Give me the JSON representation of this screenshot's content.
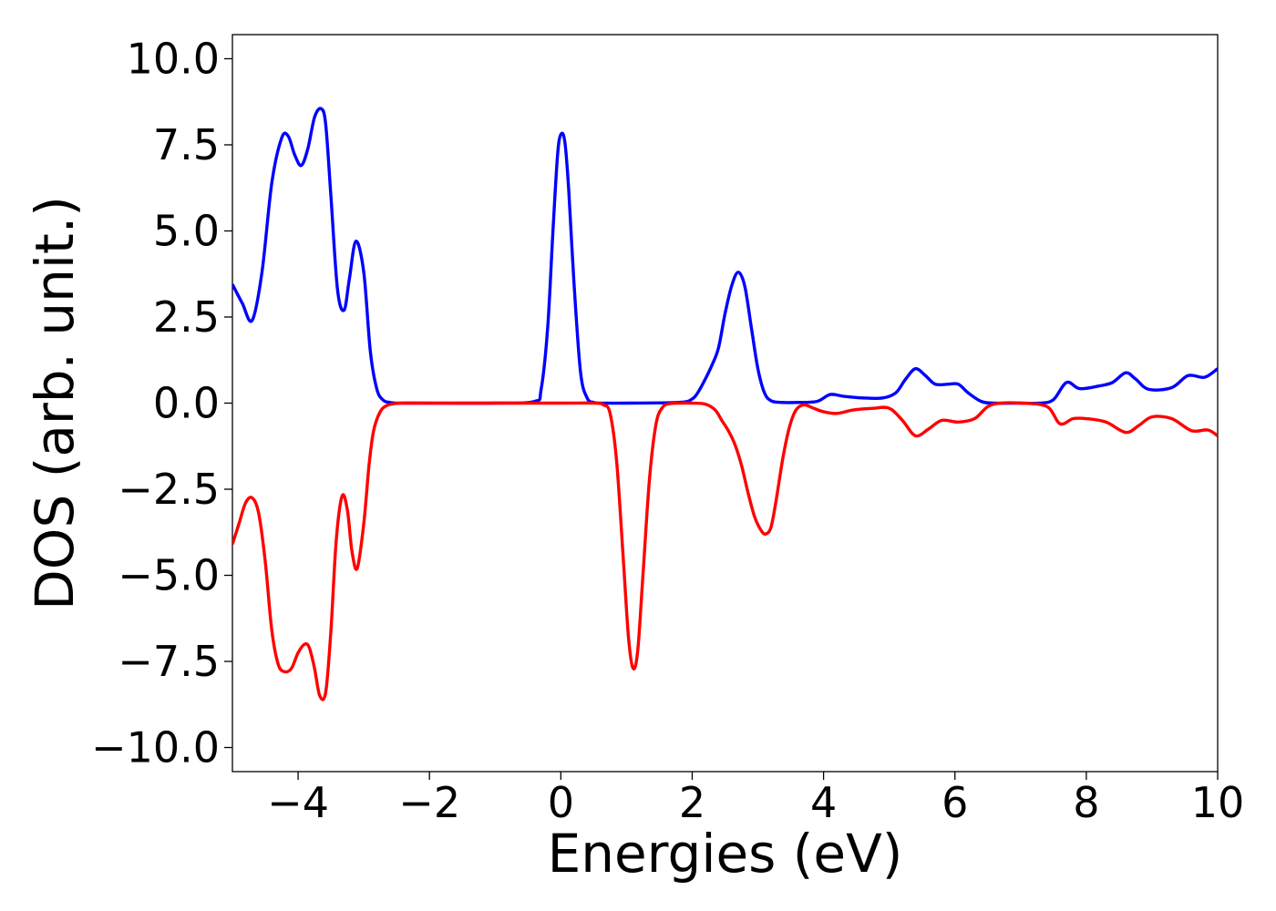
{
  "chart_data": {
    "type": "line",
    "title": "",
    "xlabel": "Energies (eV)",
    "ylabel": "DOS (arb. unit.)",
    "xlim": [
      -5,
      10
    ],
    "ylim": [
      -10.7,
      10.7
    ],
    "x_ticks": [
      -4,
      -2,
      0,
      2,
      4,
      6,
      8,
      10
    ],
    "y_ticks": [
      -10,
      -7.5,
      -5,
      -2.5,
      0,
      2.5,
      5,
      7.5,
      10
    ],
    "x_tick_labels": [
      "−4",
      "−2",
      "0",
      "2",
      "4",
      "6",
      "8",
      "10"
    ],
    "y_tick_labels": [
      "−10.0",
      "−7.5",
      "−5.0",
      "−2.5",
      "0.0",
      "2.5",
      "5.0",
      "7.5",
      "10.0"
    ],
    "grid": false,
    "legend": "none",
    "series": [
      {
        "color": "#0000ff",
        "x": [
          -5.0,
          -4.85,
          -4.7,
          -4.55,
          -4.4,
          -4.25,
          -4.15,
          -4.05,
          -3.95,
          -3.85,
          -3.75,
          -3.65,
          -3.58,
          -3.5,
          -3.4,
          -3.3,
          -3.22,
          -3.12,
          -3.0,
          -2.9,
          -2.8,
          -2.7,
          -2.6,
          -2.5,
          -2.4,
          -2.2,
          -1.0,
          -0.4,
          -0.3,
          -0.2,
          -0.12,
          -0.05,
          0.0,
          0.06,
          0.12,
          0.2,
          0.3,
          0.4,
          0.5,
          0.6,
          0.7,
          1.0,
          1.8,
          2.0,
          2.1,
          2.2,
          2.3,
          2.4,
          2.5,
          2.6,
          2.7,
          2.8,
          2.9,
          3.0,
          3.1,
          3.2,
          3.35,
          3.6,
          3.9,
          4.1,
          4.3,
          4.6,
          4.9,
          5.1,
          5.25,
          5.4,
          5.55,
          5.7,
          5.9,
          6.05,
          6.2,
          6.4,
          6.6,
          7.0,
          7.3,
          7.5,
          7.7,
          7.9,
          8.2,
          8.4,
          8.6,
          8.75,
          8.95,
          9.3,
          9.55,
          9.8,
          10.0
        ],
        "y": [
          3.45,
          2.9,
          2.4,
          3.8,
          6.4,
          7.7,
          7.75,
          7.2,
          6.9,
          7.4,
          8.3,
          8.55,
          8.1,
          6.0,
          3.3,
          2.7,
          3.6,
          4.7,
          3.8,
          1.5,
          0.4,
          0.08,
          0.02,
          0.0,
          0.0,
          0.0,
          0.0,
          0.05,
          0.4,
          2.2,
          5.0,
          7.2,
          7.8,
          7.6,
          6.2,
          3.5,
          0.9,
          0.15,
          0.02,
          0.0,
          0.0,
          0.0,
          0.02,
          0.12,
          0.35,
          0.7,
          1.1,
          1.6,
          2.6,
          3.4,
          3.8,
          3.4,
          2.2,
          1.0,
          0.3,
          0.07,
          0.02,
          0.02,
          0.05,
          0.25,
          0.2,
          0.15,
          0.15,
          0.3,
          0.7,
          1.0,
          0.8,
          0.55,
          0.55,
          0.55,
          0.3,
          0.05,
          0.0,
          0.0,
          0.0,
          0.1,
          0.6,
          0.42,
          0.5,
          0.6,
          0.88,
          0.7,
          0.4,
          0.45,
          0.8,
          0.75,
          1.0
        ]
      },
      {
        "color": "#ff0000",
        "x": [
          -5.0,
          -4.9,
          -4.8,
          -4.7,
          -4.6,
          -4.5,
          -4.4,
          -4.3,
          -4.2,
          -4.1,
          -4.0,
          -3.9,
          -3.83,
          -3.75,
          -3.67,
          -3.58,
          -3.5,
          -3.42,
          -3.33,
          -3.25,
          -3.18,
          -3.1,
          -3.0,
          -2.92,
          -2.85,
          -2.75,
          -2.65,
          -2.55,
          -2.45,
          -2.35,
          -2.2,
          0.0,
          0.5,
          0.65,
          0.75,
          0.85,
          0.95,
          1.03,
          1.1,
          1.17,
          1.25,
          1.35,
          1.45,
          1.55,
          1.65,
          1.8,
          2.0,
          2.2,
          2.35,
          2.45,
          2.55,
          2.65,
          2.75,
          2.85,
          2.95,
          3.05,
          3.12,
          3.2,
          3.28,
          3.38,
          3.48,
          3.58,
          3.7,
          3.85,
          4.0,
          4.2,
          4.45,
          4.75,
          5.0,
          5.2,
          5.4,
          5.6,
          5.8,
          6.05,
          6.3,
          6.5,
          6.7,
          7.0,
          7.4,
          7.6,
          7.8,
          8.0,
          8.3,
          8.6,
          8.8,
          9.0,
          9.3,
          9.6,
          9.85,
          10.0
        ],
        "y": [
          -4.1,
          -3.5,
          -2.9,
          -2.75,
          -3.2,
          -4.6,
          -6.6,
          -7.6,
          -7.8,
          -7.7,
          -7.25,
          -7.0,
          -7.1,
          -7.7,
          -8.5,
          -8.4,
          -6.6,
          -4.0,
          -2.7,
          -3.1,
          -4.3,
          -4.8,
          -3.5,
          -1.8,
          -0.8,
          -0.25,
          -0.07,
          -0.02,
          0.0,
          0.0,
          0.0,
          0.0,
          0.0,
          -0.05,
          -0.3,
          -1.7,
          -4.5,
          -6.8,
          -7.7,
          -7.2,
          -5.0,
          -2.2,
          -0.6,
          -0.12,
          -0.02,
          0.0,
          0.0,
          -0.03,
          -0.2,
          -0.5,
          -0.8,
          -1.2,
          -1.8,
          -2.6,
          -3.3,
          -3.7,
          -3.8,
          -3.6,
          -2.8,
          -1.6,
          -0.7,
          -0.2,
          -0.05,
          -0.15,
          -0.25,
          -0.3,
          -0.2,
          -0.15,
          -0.15,
          -0.5,
          -0.95,
          -0.75,
          -0.5,
          -0.55,
          -0.45,
          -0.1,
          0.0,
          0.0,
          -0.1,
          -0.6,
          -0.45,
          -0.45,
          -0.55,
          -0.85,
          -0.65,
          -0.4,
          -0.45,
          -0.8,
          -0.78,
          -0.95
        ]
      }
    ]
  }
}
